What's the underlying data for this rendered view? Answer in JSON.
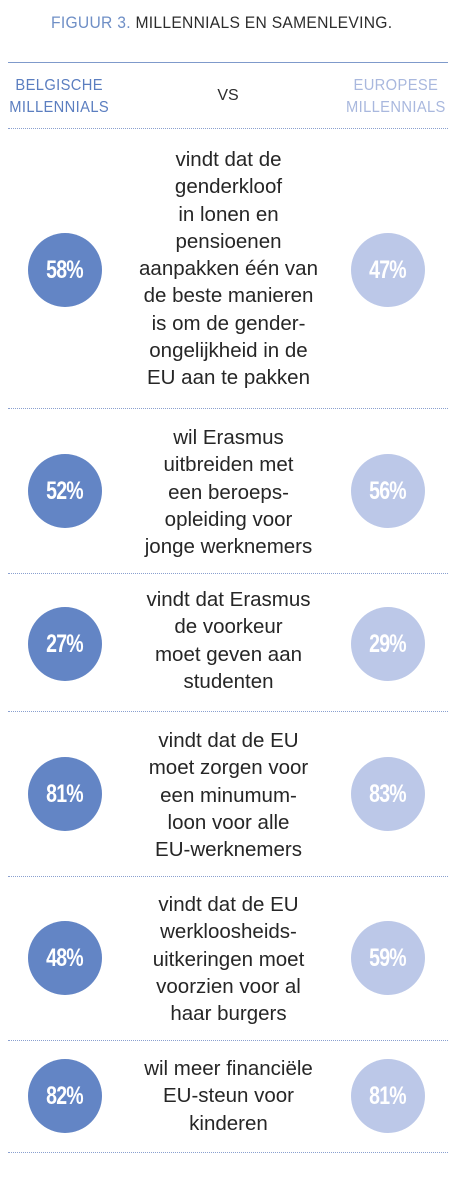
{
  "title": {
    "figure": "FIGUUR 3.",
    "main": "MILLENNIALS EN SAMENLEVING."
  },
  "header": {
    "left_line1": "BELGISCHE",
    "left_line2": "MILLENNIALS",
    "vs": "VS",
    "right_line1": "EUROPESE",
    "right_line2": "MILLENNIALS"
  },
  "colors": {
    "belgian": "#6385c5",
    "european": "#bcc8e8",
    "accent": "#6f8fc6"
  },
  "chart_data": {
    "type": "table",
    "columns": [
      "BELGISCHE MILLENNIALS",
      "EUROPESE MILLENNIALS"
    ],
    "rows": [
      {
        "statement": "vindt dat de\ngenderkloof\nin lonen en\npensioenen\naanpakken één van\nde beste manieren\nis om de gender-\nongelijkheid in de\nEU aan te pakken",
        "belgian": "58%",
        "european": "47%"
      },
      {
        "statement": "wil Erasmus\nuitbreiden met\neen beroeps-\nopleiding voor\njonge werknemers",
        "belgian": "52%",
        "european": "56%"
      },
      {
        "statement": "vindt dat Erasmus\nde voorkeur\nmoet geven aan\nstudenten",
        "belgian": "27%",
        "european": "29%"
      },
      {
        "statement": "vindt dat de EU\nmoet zorgen voor\neen minumum-\nloon voor alle\nEU-werknemers",
        "belgian": "81%",
        "european": "83%"
      },
      {
        "statement": "vindt dat de EU\nwerkloosheids-\nuitkeringen moet\nvoorzien voor al\nhaar burgers",
        "belgian": "48%",
        "european": "59%"
      },
      {
        "statement": "wil meer financiële\nEU-steun voor\nkinderen",
        "belgian": "82%",
        "european": "81%"
      }
    ]
  }
}
